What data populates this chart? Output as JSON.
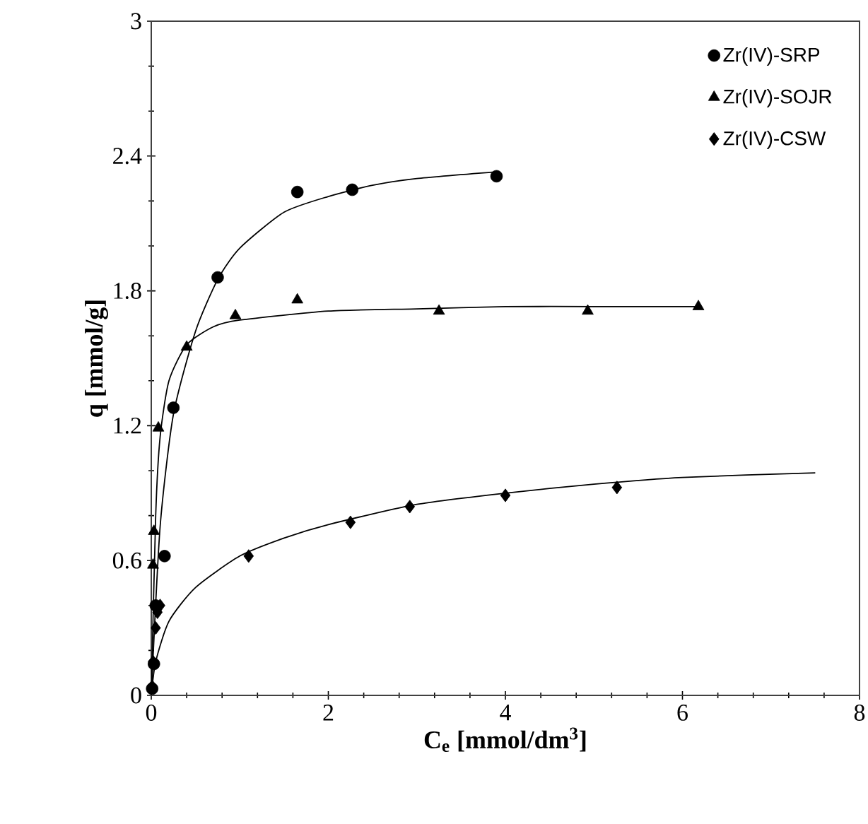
{
  "chart_data": {
    "type": "scatter",
    "xlabel": "C$_{e}$ [mmol/dm$^{3}$]",
    "ylabel": "q [mmol/g]",
    "xlim": [
      0,
      8
    ],
    "ylim": [
      0,
      3
    ],
    "xticks": [
      0,
      2,
      4,
      6,
      8
    ],
    "yticks": [
      0,
      {
        "value": 0.6,
        "label": "0.6"
      },
      {
        "value": 1.2,
        "label": "1.2"
      },
      {
        "value": 1.8,
        "label": "1.8"
      },
      {
        "value": 2.4,
        "label": "2.4"
      },
      3
    ],
    "grid": false,
    "legend": "top right",
    "series": [
      {
        "name": "Zr(IV)-SRP",
        "color": "#000000",
        "marker": "circle",
        "x": [
          0.01,
          0.03,
          0.05,
          0.15,
          0.25,
          0.75,
          1.65,
          2.27,
          3.9
        ],
        "values": [
          0.03,
          0.14,
          0.4,
          0.62,
          1.28,
          1.86,
          2.24,
          2.25,
          2.31
        ]
      },
      {
        "name": "Zr(IV)-SOJR",
        "color": "#000000",
        "marker": "triangle",
        "x": [
          0.02,
          0.03,
          0.08,
          0.4,
          0.95,
          1.65,
          3.25,
          4.93,
          6.18
        ],
        "values": [
          0.58,
          0.73,
          1.19,
          1.55,
          1.69,
          1.76,
          1.71,
          1.71,
          1.73
        ]
      },
      {
        "name": "Zr(IV)-CSW",
        "color": "#000000",
        "marker": "diamond",
        "x": [
          0.01,
          0.02,
          0.05,
          0.07,
          0.1,
          1.1,
          2.25,
          2.92,
          4.0,
          5.26
        ],
        "values": [
          0.04,
          0.15,
          0.3,
          0.37,
          0.4,
          0.62,
          0.77,
          0.84,
          0.89,
          0.925
        ]
      },
      {
        "type": "line",
        "color": "#000000",
        "marker": "none",
        "x": [
          0,
          0.1,
          0.25,
          0.5,
          0.75,
          1,
          1.5,
          2,
          2.5,
          3,
          3.9
        ],
        "values": [
          0,
          0.75,
          1.25,
          1.62,
          1.85,
          1.99,
          2.15,
          2.22,
          2.27,
          2.3,
          2.33
        ]
      },
      {
        "type": "line",
        "color": "#000000",
        "marker": "none",
        "x": [
          0,
          0.05,
          0.1,
          0.2,
          0.4,
          0.7,
          1,
          2,
          3,
          4,
          5,
          6.2
        ],
        "values": [
          0,
          0.8,
          1.15,
          1.4,
          1.56,
          1.64,
          1.67,
          1.71,
          1.72,
          1.73,
          1.73,
          1.73
        ]
      },
      {
        "type": "line",
        "color": "#000000",
        "marker": "none",
        "x": [
          0,
          0.05,
          0.2,
          0.5,
          1,
          1.5,
          2,
          3,
          4,
          5,
          6,
          7.5
        ],
        "values": [
          0,
          0.15,
          0.33,
          0.48,
          0.62,
          0.7,
          0.76,
          0.85,
          0.9,
          0.94,
          0.97,
          0.99
        ]
      }
    ]
  }
}
